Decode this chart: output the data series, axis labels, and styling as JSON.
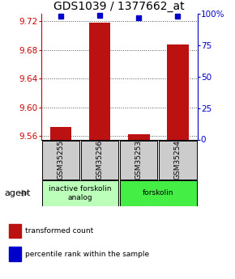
{
  "title": "GDS1039 / 1377662_at",
  "samples": [
    "GSM35255",
    "GSM35256",
    "GSM35253",
    "GSM35254"
  ],
  "transformed_counts": [
    9.573,
    9.718,
    9.562,
    9.688
  ],
  "percentile_ranks": [
    98,
    99,
    97,
    98
  ],
  "ylim": [
    9.555,
    9.73
  ],
  "yticks": [
    9.56,
    9.6,
    9.64,
    9.68,
    9.72
  ],
  "y2ticks": [
    0,
    25,
    50,
    75,
    100
  ],
  "y2labels": [
    "0",
    "25",
    "50",
    "75",
    "100%"
  ],
  "bar_color": "#bb1111",
  "dot_color": "#0000cc",
  "bar_width": 0.55,
  "groups": [
    {
      "label": "inactive forskolin\nanalog",
      "samples": [
        0,
        1
      ],
      "color": "#bbffbb"
    },
    {
      "label": "forskolin",
      "samples": [
        2,
        3
      ],
      "color": "#44ee44"
    }
  ],
  "agent_label": "agent",
  "legend_red": "transformed count",
  "legend_blue": "percentile rank within the sample",
  "grid_color": "#555555",
  "background_color": "#ffffff",
  "sample_box_color": "#cccccc",
  "title_fontsize": 10,
  "tick_fontsize": 7.5,
  "label_fontsize": 7
}
